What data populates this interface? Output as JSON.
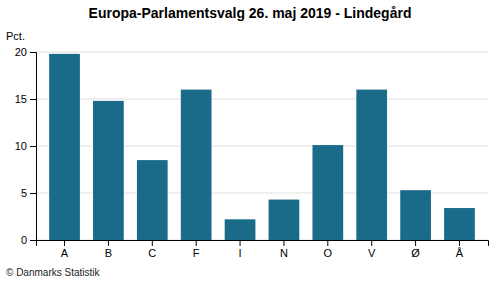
{
  "chart_data": {
    "type": "bar",
    "title": "Europa-Parlamentsvalg 26. maj 2019 - Lindegård",
    "ylabel": "Pct.",
    "annotations": [
      "© Danmarks Statistik"
    ],
    "categories": [
      "A",
      "B",
      "C",
      "F",
      "I",
      "N",
      "O",
      "V",
      "Ø",
      "Å"
    ],
    "values": [
      19.8,
      14.8,
      8.5,
      16.0,
      2.2,
      4.3,
      10.1,
      16.0,
      5.3,
      3.4
    ],
    "color": "#1a6b8a",
    "ylim": [
      0,
      20
    ],
    "yticks": [
      0,
      5,
      10,
      15,
      20
    ],
    "grid": true
  }
}
